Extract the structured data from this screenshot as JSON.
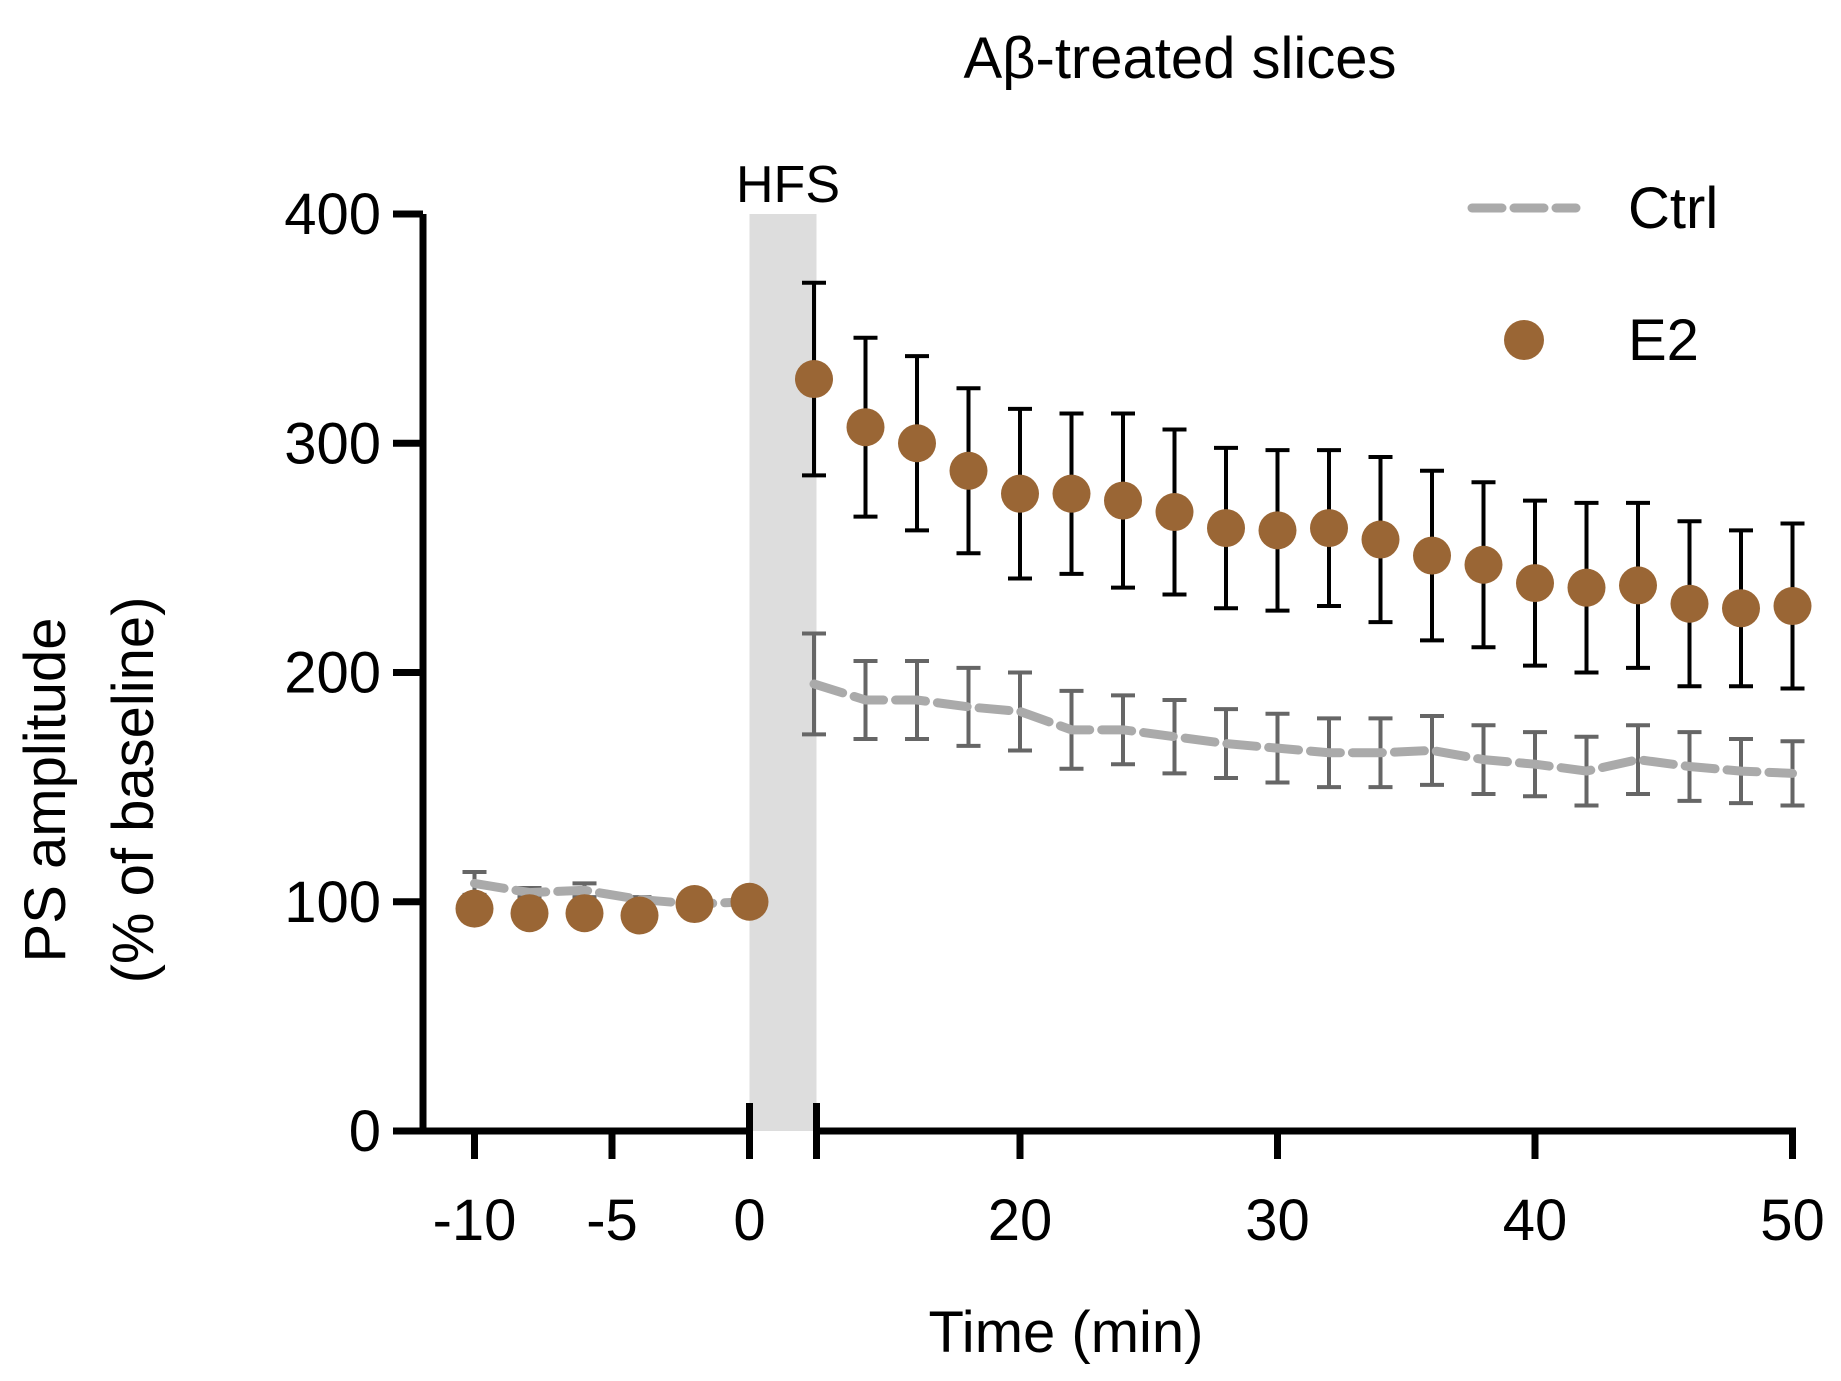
{
  "chart_data": {
    "type": "scatter",
    "title": "Aβ-treated slices",
    "xlabel": "Time (min)",
    "ylabel_line1": "PS amplitude",
    "ylabel_line2": "(% of baseline)",
    "ylim": [
      0,
      400
    ],
    "yticks": [
      0,
      100,
      200,
      300,
      400
    ],
    "ytick_labels": [
      "0",
      "100",
      "200",
      "300",
      "400"
    ],
    "xticks_pre": [
      -10,
      -5,
      0
    ],
    "xtick_labels_pre": [
      "-10",
      "-5",
      "0"
    ],
    "xticks_post": [
      20,
      30,
      40,
      50
    ],
    "xtick_labels_post": [
      "20",
      "30",
      "40",
      "50"
    ],
    "hfs_label": "HFS",
    "legend": {
      "position": "top-right",
      "ctrl_label": "Ctrl",
      "e2_label": "E2"
    },
    "colors": {
      "e2": "#9A6635",
      "ctrl": "#AAAAAA",
      "ctrl_err": "#666666",
      "hfs": "#DDDDDD",
      "axis": "#000000"
    },
    "pre": {
      "x": [
        -10,
        -8,
        -6,
        -4,
        -2,
        0
      ],
      "e2": [
        97,
        95,
        95,
        94,
        99,
        100
      ],
      "ctrl": [
        108,
        104,
        105,
        101,
        99,
        100
      ],
      "ctrl_err": [
        5,
        2,
        3,
        1,
        1,
        0
      ]
    },
    "post": {
      "x": [
        12,
        14,
        16,
        18,
        20,
        22,
        24,
        26,
        28,
        30,
        32,
        34,
        36,
        38,
        40,
        42,
        44,
        46,
        48,
        50
      ],
      "e2": [
        328,
        307,
        300,
        288,
        278,
        278,
        275,
        270,
        263,
        262,
        263,
        258,
        251,
        247,
        239,
        237,
        238,
        230,
        228,
        229
      ],
      "e2_err": [
        42,
        39,
        38,
        36,
        37,
        35,
        38,
        36,
        35,
        35,
        34,
        36,
        37,
        36,
        36,
        37,
        36,
        36,
        34,
        36
      ],
      "ctrl": [
        195,
        188,
        188,
        185,
        183,
        175,
        175,
        172,
        169,
        167,
        165,
        165,
        166,
        162,
        160,
        157,
        162,
        159,
        157,
        156
      ],
      "ctrl_err": [
        22,
        17,
        17,
        17,
        17,
        17,
        15,
        16,
        15,
        15,
        15,
        15,
        15,
        15,
        14,
        15,
        15,
        15,
        14,
        14
      ]
    }
  }
}
